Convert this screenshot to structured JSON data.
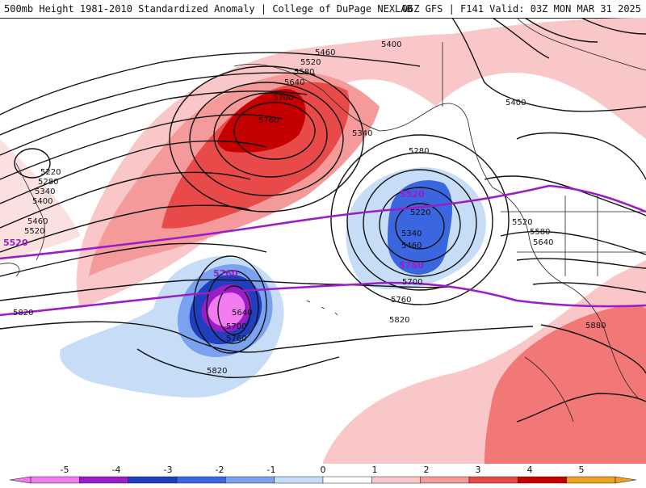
{
  "title": {
    "left": "500mb Height 1981-2010 Standardized Anomaly | College of DuPage NEXLAB",
    "right": "06Z GFS | F141 Valid: 03Z MON MAR 31 2025"
  },
  "contour_labels": {
    "black": [
      "5460",
      "5520",
      "5580",
      "5640",
      "5700",
      "5760",
      "5400",
      "5400",
      "5340",
      "5280",
      "5220",
      "5340",
      "5460",
      "5700",
      "5760",
      "5220",
      "5280",
      "5340",
      "5400",
      "5460",
      "5520",
      "5820",
      "5520",
      "5580",
      "5640",
      "5880",
      "5640",
      "5700",
      "5760",
      "5820",
      "5820"
    ],
    "purple": [
      "5520",
      "5520",
      "5760",
      "5760"
    ]
  },
  "colorbar": {
    "ticks": [
      "-5",
      "-4",
      "-3",
      "-2",
      "-1",
      "0",
      "1",
      "2",
      "3",
      "4",
      "5"
    ],
    "colors": [
      "#f07cf0",
      "#9b1dc8",
      "#1f3fbf",
      "#3a66e0",
      "#7aa2f0",
      "#c7dcf7",
      "#ffffff",
      "#f9c7c7",
      "#f49a9a",
      "#e84a4a",
      "#c40000",
      "#f0a020"
    ]
  },
  "colors": {
    "title_text": "#111111",
    "contour": "#111111",
    "highlight_contour": "#9b1dc8",
    "coastline": "#222222"
  }
}
